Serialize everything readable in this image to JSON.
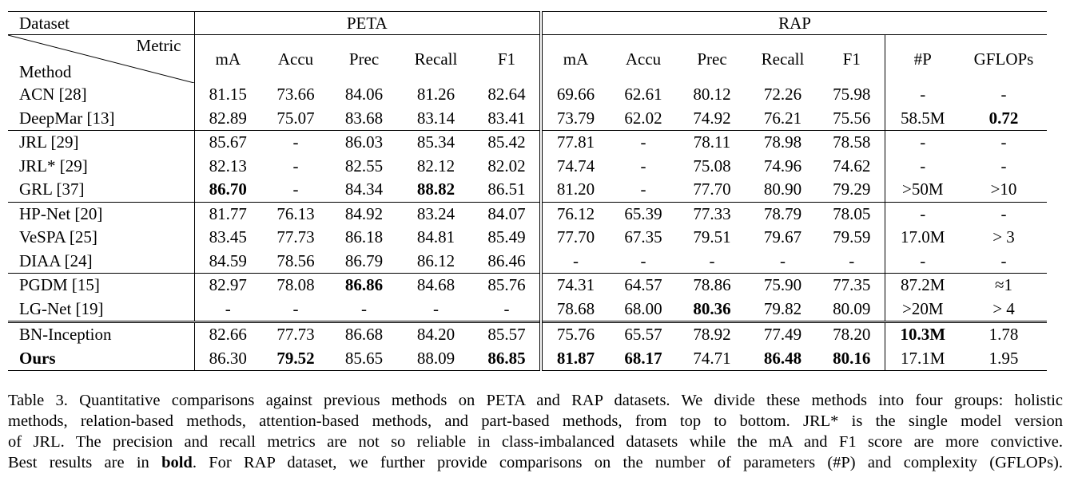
{
  "header": {
    "dataset_label": "Dataset",
    "metric_label": "Metric",
    "method_label": "Method",
    "peta_label": "PETA",
    "rap_label": "RAP",
    "peta_metrics": [
      "mA",
      "Accu",
      "Prec",
      "Recall",
      "F1"
    ],
    "rap_metrics": [
      "mA",
      "Accu",
      "Prec",
      "Recall",
      "F1",
      "#P",
      "GFLOPs"
    ]
  },
  "rows": [
    {
      "method": "ACN [28]",
      "peta": [
        "81.15",
        "73.66",
        "84.06",
        "81.26",
        "82.64"
      ],
      "rap": [
        "69.66",
        "62.61",
        "80.12",
        "72.26",
        "75.98",
        "-",
        "-"
      ],
      "bold": []
    },
    {
      "method": "DeepMar [13]",
      "peta": [
        "82.89",
        "75.07",
        "83.68",
        "83.14",
        "83.41"
      ],
      "rap": [
        "73.79",
        "62.02",
        "74.92",
        "76.21",
        "75.56",
        "58.5M",
        "0.72"
      ],
      "bold": [
        "rap.6"
      ]
    },
    {
      "method": "JRL [29]",
      "peta": [
        "85.67",
        "-",
        "86.03",
        "85.34",
        "85.42"
      ],
      "rap": [
        "77.81",
        "-",
        "78.11",
        "78.98",
        "78.58",
        "-",
        "-"
      ],
      "bold": []
    },
    {
      "method": "JRL* [29]",
      "peta": [
        "82.13",
        "-",
        "82.55",
        "82.12",
        "82.02"
      ],
      "rap": [
        "74.74",
        "-",
        "75.08",
        "74.96",
        "74.62",
        "-",
        "-"
      ],
      "bold": []
    },
    {
      "method": "GRL [37]",
      "peta": [
        "86.70",
        "-",
        "84.34",
        "88.82",
        "86.51"
      ],
      "rap": [
        "81.20",
        "-",
        "77.70",
        "80.90",
        "79.29",
        ">50M",
        ">10"
      ],
      "bold": [
        "peta.0",
        "peta.3"
      ]
    },
    {
      "method": "HP-Net [20]",
      "peta": [
        "81.77",
        "76.13",
        "84.92",
        "83.24",
        "84.07"
      ],
      "rap": [
        "76.12",
        "65.39",
        "77.33",
        "78.79",
        "78.05",
        "-",
        "-"
      ],
      "bold": []
    },
    {
      "method": "VeSPA [25]",
      "peta": [
        "83.45",
        "77.73",
        "86.18",
        "84.81",
        "85.49"
      ],
      "rap": [
        "77.70",
        "67.35",
        "79.51",
        "79.67",
        "79.59",
        "17.0M",
        "> 3"
      ],
      "bold": []
    },
    {
      "method": "DIAA [24]",
      "peta": [
        "84.59",
        "78.56",
        "86.79",
        "86.12",
        "86.46"
      ],
      "rap": [
        "-",
        "-",
        "-",
        "-",
        "-",
        "-",
        "-"
      ],
      "bold": []
    },
    {
      "method": "PGDM [15]",
      "peta": [
        "82.97",
        "78.08",
        "86.86",
        "84.68",
        "85.76"
      ],
      "rap": [
        "74.31",
        "64.57",
        "78.86",
        "75.90",
        "77.35",
        "87.2M",
        "≈1"
      ],
      "bold": [
        "peta.2"
      ]
    },
    {
      "method": "LG-Net [19]",
      "peta": [
        "-",
        "-",
        "-",
        "-",
        "-"
      ],
      "rap": [
        "78.68",
        "68.00",
        "80.36",
        "79.82",
        "80.09",
        ">20M",
        "> 4"
      ],
      "bold": [
        "rap.2"
      ]
    },
    {
      "method": "BN-Inception",
      "peta": [
        "82.66",
        "77.73",
        "86.68",
        "84.20",
        "85.57"
      ],
      "rap": [
        "75.76",
        "65.57",
        "78.92",
        "77.49",
        "78.20",
        "10.3M",
        "1.78"
      ],
      "bold": [
        "rap.5"
      ]
    },
    {
      "method": "Ours",
      "peta": [
        "86.30",
        "79.52",
        "85.65",
        "88.09",
        "86.85"
      ],
      "rap": [
        "81.87",
        "68.17",
        "74.71",
        "86.48",
        "80.16",
        "17.1M",
        "1.95"
      ],
      "bold": [
        "method",
        "peta.1",
        "peta.4",
        "rap.0",
        "rap.1",
        "rap.3",
        "rap.4"
      ]
    }
  ],
  "caption": {
    "line1": "Table 3. Quantitative comparisons against previous methods on PETA and RAP datasets. We divide these methods into four groups: holistic",
    "line2": "methods, relation-based methods, attention-based methods, and part-based methods, from top to bottom. JRL* is the single model version",
    "line3": "of JRL. The precision and recall metrics are not so reliable in class-imbalanced datasets while the mA and F1 score are more convictive.",
    "line4_start": "Best results are in ",
    "line4_bold": "bold",
    "line4_end": ". For RAP dataset, we further provide comparisons on the number of parameters (#P) and complexity (GFLOPs)."
  }
}
